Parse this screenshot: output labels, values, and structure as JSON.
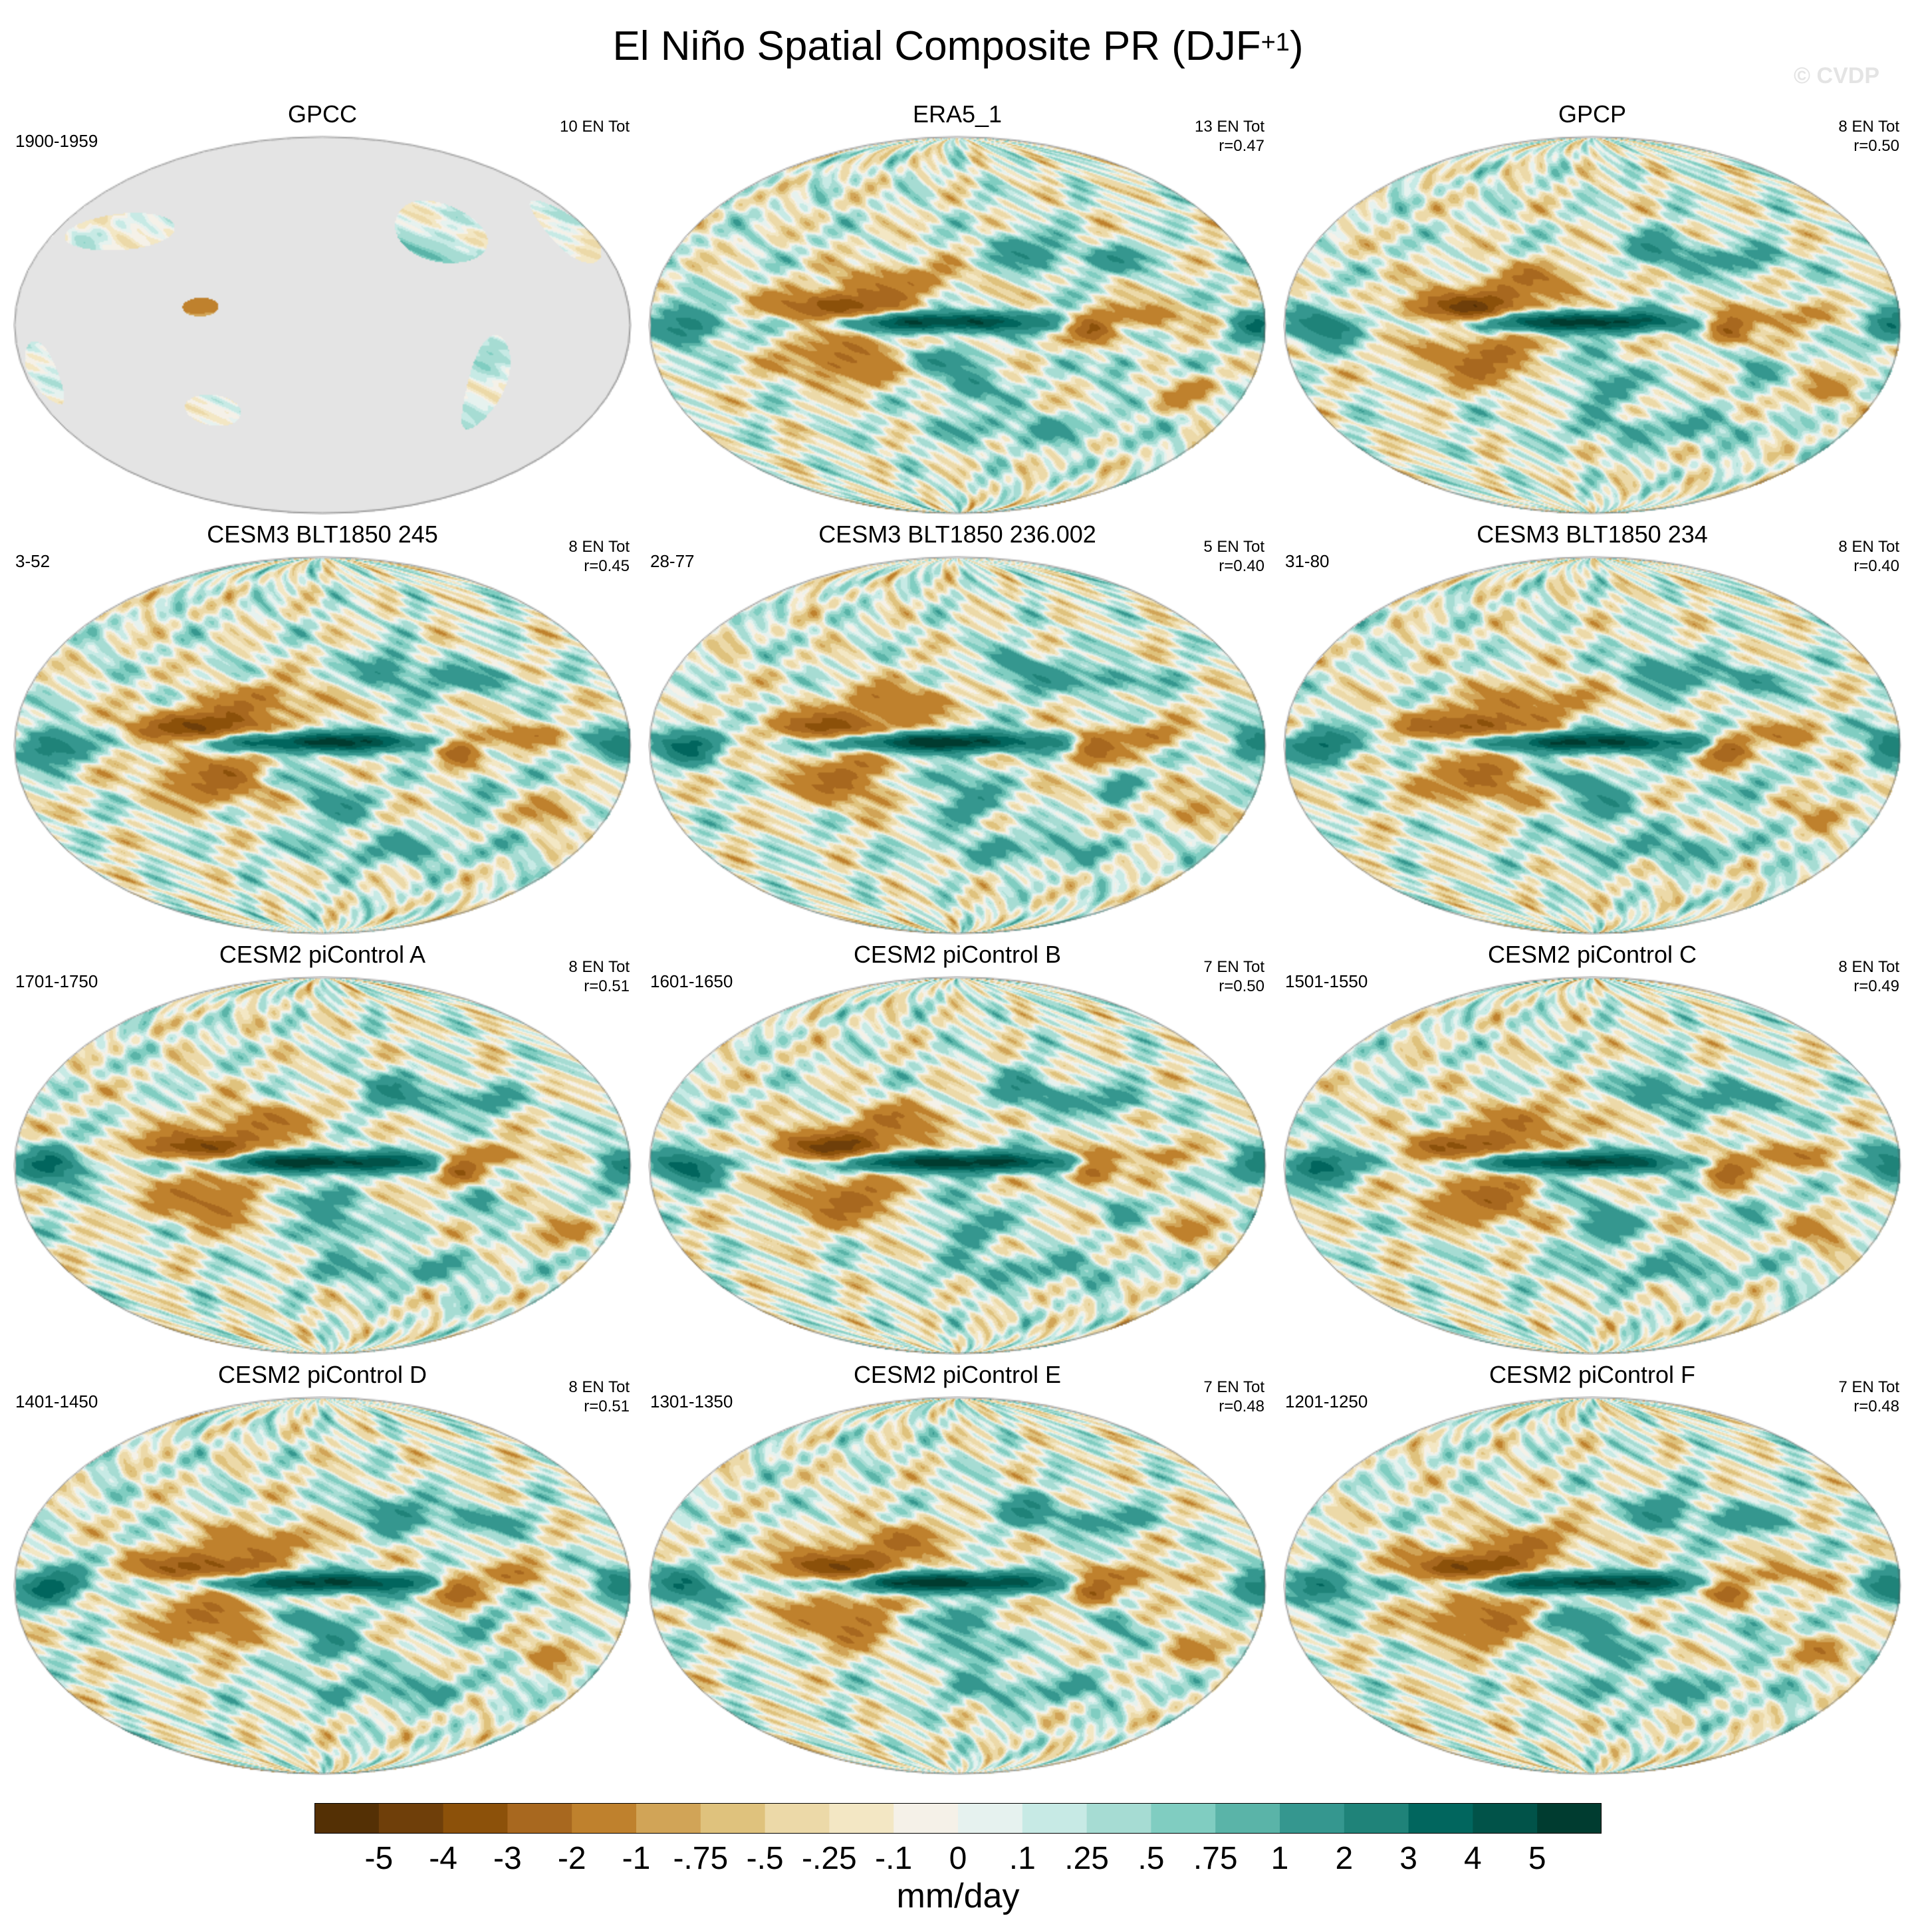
{
  "figure": {
    "title_main": "El Niño Spatial Composite PR (DJF",
    "title_sup": "+1",
    "title_close": ")",
    "watermark": "© CVDP"
  },
  "panels": [
    {
      "title": "GPCC",
      "period": "1900-1959",
      "count": "10 EN Tot",
      "r": "",
      "kind": "land",
      "seed": 3
    },
    {
      "title": "ERA5_1",
      "period": "",
      "count": "13 EN Tot",
      "r": "r=0.47",
      "kind": "full",
      "seed": 7
    },
    {
      "title": "GPCP",
      "period": "",
      "count": "8 EN Tot",
      "r": "r=0.50",
      "kind": "full",
      "seed": 11
    },
    {
      "title": "CESM3 BLT1850 245",
      "period": "3-52",
      "count": "8 EN Tot",
      "r": "r=0.45",
      "kind": "full",
      "seed": 13
    },
    {
      "title": "CESM3 BLT1850 236.002",
      "period": "28-77",
      "count": "5 EN Tot",
      "r": "r=0.40",
      "kind": "full",
      "seed": 17
    },
    {
      "title": "CESM3 BLT1850 234",
      "period": "31-80",
      "count": "8 EN Tot",
      "r": "r=0.40",
      "kind": "full",
      "seed": 19
    },
    {
      "title": "CESM2 piControl A",
      "period": "1701-1750",
      "count": "8 EN Tot",
      "r": "r=0.51",
      "kind": "full",
      "seed": 23
    },
    {
      "title": "CESM2 piControl B",
      "period": "1601-1650",
      "count": "7 EN Tot",
      "r": "r=0.50",
      "kind": "full",
      "seed": 29
    },
    {
      "title": "CESM2 piControl C",
      "period": "1501-1550",
      "count": "8 EN Tot",
      "r": "r=0.49",
      "kind": "full",
      "seed": 31
    },
    {
      "title": "CESM2 piControl D",
      "period": "1401-1450",
      "count": "8 EN Tot",
      "r": "r=0.51",
      "kind": "full",
      "seed": 37
    },
    {
      "title": "CESM2 piControl E",
      "period": "1301-1350",
      "count": "7 EN Tot",
      "r": "r=0.48",
      "kind": "full",
      "seed": 41
    },
    {
      "title": "CESM2 piControl F",
      "period": "1201-1250",
      "count": "7 EN Tot",
      "r": "r=0.48",
      "kind": "full",
      "seed": 43
    }
  ],
  "colorbar": {
    "labels": [
      "-5",
      "-4",
      "-3",
      "-2",
      "-1",
      "-.75",
      "-.5",
      "-.25",
      "-.1",
      "0",
      ".1",
      ".25",
      ".5",
      ".75",
      "1",
      "2",
      "3",
      "4",
      "5"
    ],
    "colors": [
      "#543005",
      "#6f3f0a",
      "#8c510a",
      "#a8681f",
      "#bf812d",
      "#d1a457",
      "#dfc27d",
      "#ecd9a8",
      "#f3e7c4",
      "#f5f1e8",
      "#e6f2ef",
      "#c7eae5",
      "#a6dcd3",
      "#80cdc1",
      "#5ab4a8",
      "#35978f",
      "#1f8379",
      "#01665e",
      "#015349",
      "#003c30"
    ],
    "units": "mm/day"
  }
}
